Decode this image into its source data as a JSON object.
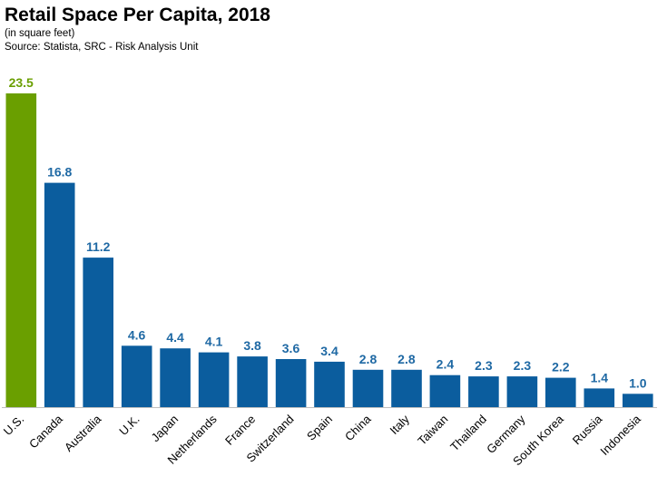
{
  "header": {
    "title": "Retail Space Per Capita, 2018",
    "subtitle": "(in square feet)",
    "source": "Source: Statista, SRC - Risk Analysis Unit"
  },
  "colors": {
    "highlight": "#6a9f00",
    "bar": "#0b5d9e",
    "label_highlight": "#6a9f00",
    "label": "#1f69a4",
    "axis": "#bfbfbf"
  },
  "chart_data": {
    "type": "bar",
    "title": "Retail Space Per Capita, 2018",
    "subtitle": "(in square feet)",
    "xlabel": "",
    "ylabel": "",
    "ylim": [
      0,
      23.5
    ],
    "grid": false,
    "legend": "none",
    "categories": [
      "U.S.",
      "Canada",
      "Australia",
      "U.K.",
      "Japan",
      "Netherlands",
      "France",
      "Switzerland",
      "Spain",
      "China",
      "Italy",
      "Taiwan",
      "Thailand",
      "Germany",
      "South Korea",
      "Russia",
      "Indonesia"
    ],
    "values": [
      23.5,
      16.8,
      11.2,
      4.6,
      4.4,
      4.1,
      3.8,
      3.6,
      3.4,
      2.8,
      2.8,
      2.4,
      2.3,
      2.3,
      2.2,
      1.4,
      1.0
    ],
    "value_labels": [
      "23.5",
      "16.8",
      "11.2",
      "4.6",
      "4.4",
      "4.1",
      "3.8",
      "3.6",
      "3.4",
      "2.8",
      "2.8",
      "2.4",
      "2.3",
      "2.3",
      "2.2",
      "1.4",
      "1.0"
    ],
    "highlight_category": "U.S."
  }
}
